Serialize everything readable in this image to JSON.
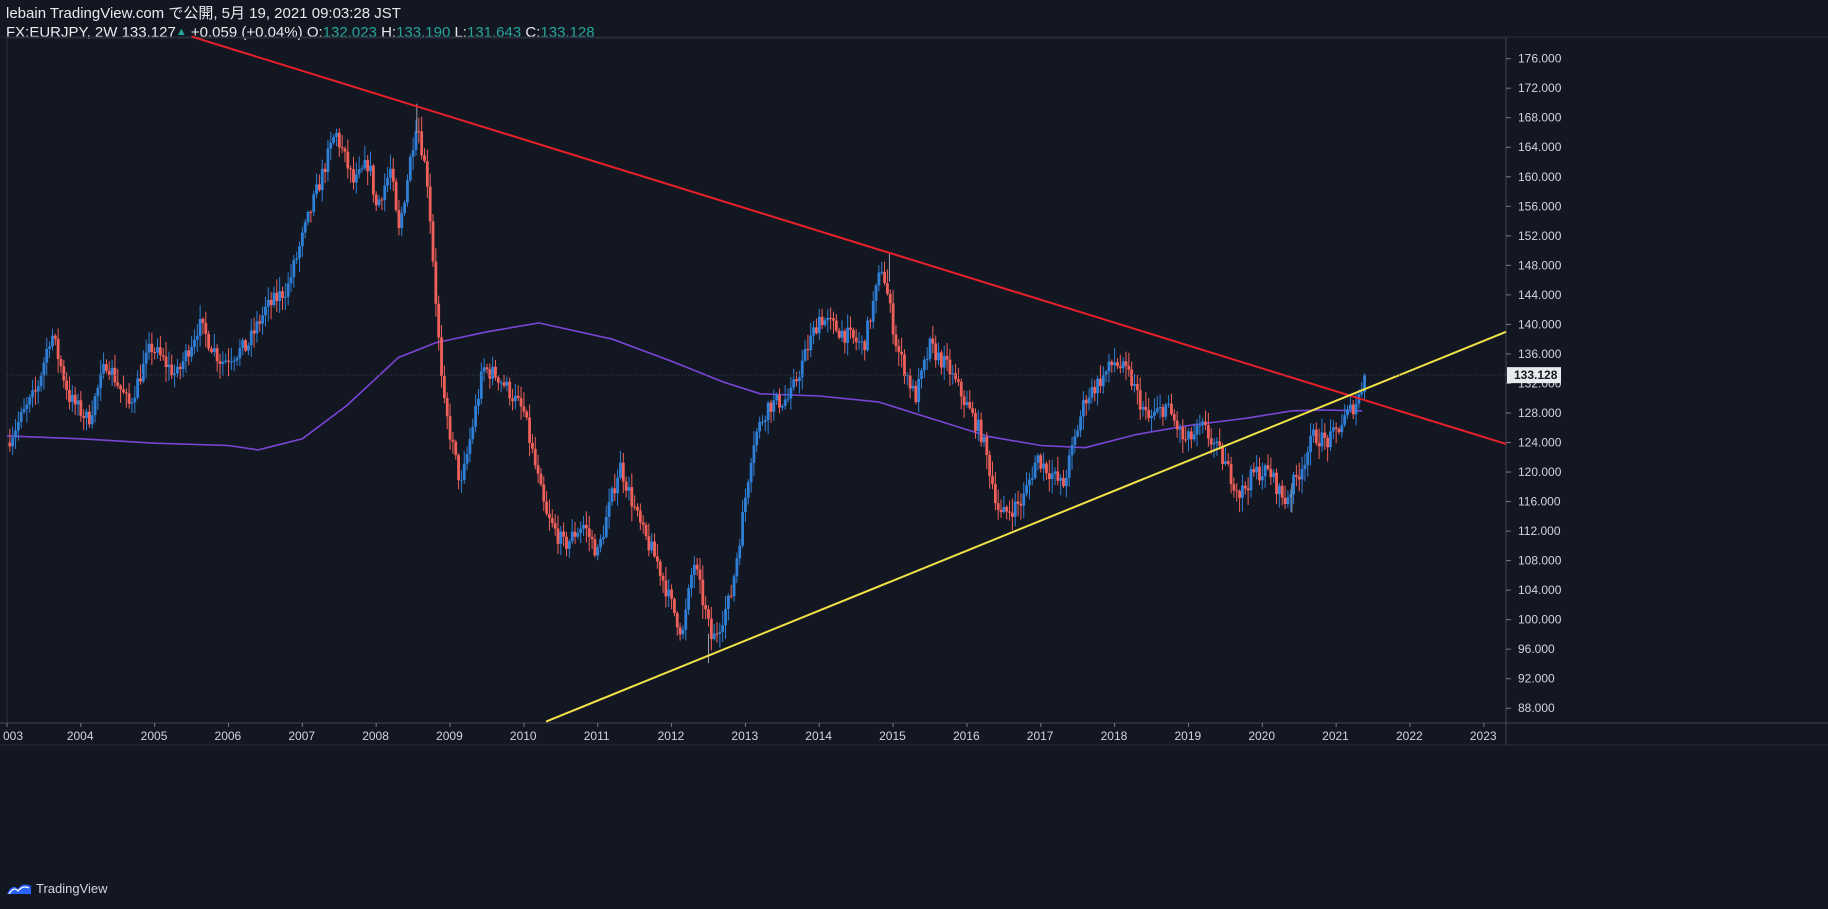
{
  "header": {
    "publish_line": "lebain TradingView.com で公開, 5月 19, 2021 09:03:28 JST",
    "symbol": "FX:EURJPY, 2W",
    "last_price": "133.127",
    "change_arrow": "▲",
    "change": "+0.059 (+0.04%)",
    "open_label": "O:",
    "open": "132.023",
    "high_label": "H:",
    "high": "133.190",
    "low_label": "L:",
    "low": "131.643",
    "close_label": "C:",
    "close": "133.128"
  },
  "footer": {
    "brand": "TradingView"
  },
  "colors": {
    "background": "#131722",
    "up_candle": "#2f7fd6",
    "down_candle": "#f0605a",
    "resistance_line": "#e8202a",
    "support_line": "#f2e24a",
    "moving_average": "#7a45d6",
    "price_label_bg": "#e8eaed"
  },
  "chart_data": {
    "type": "candlestick",
    "symbol": "FX:EURJPY",
    "interval": "2W",
    "xlim": [
      2003.0,
      2023.3
    ],
    "ylim": [
      86.0,
      178.8
    ],
    "x_ticks": [
      "003",
      "2004",
      "2005",
      "2006",
      "2007",
      "2008",
      "2009",
      "2010",
      "2011",
      "2012",
      "2013",
      "2014",
      "2015",
      "2016",
      "2017",
      "2018",
      "2019",
      "2020",
      "2021",
      "2022",
      "2023"
    ],
    "y_ticks": [
      "88.000",
      "92.000",
      "96.000",
      "100.000",
      "104.000",
      "108.000",
      "112.000",
      "116.000",
      "120.000",
      "124.000",
      "128.000",
      "132.000",
      "136.000",
      "140.000",
      "144.000",
      "148.000",
      "152.000",
      "156.000",
      "160.000",
      "164.000",
      "168.000",
      "172.000",
      "176.000"
    ],
    "last_price_label": "133.128",
    "price_path": [
      [
        2003.0,
        124
      ],
      [
        2003.4,
        131
      ],
      [
        2003.6,
        139
      ],
      [
        2003.85,
        130
      ],
      [
        2004.1,
        127
      ],
      [
        2004.35,
        135
      ],
      [
        2004.65,
        129
      ],
      [
        2004.95,
        137
      ],
      [
        2005.3,
        133
      ],
      [
        2005.6,
        140
      ],
      [
        2005.9,
        135
      ],
      [
        2006.25,
        137
      ],
      [
        2006.5,
        142
      ],
      [
        2006.8,
        145
      ],
      [
        2007.1,
        155
      ],
      [
        2007.45,
        166
      ],
      [
        2007.7,
        159
      ],
      [
        2007.9,
        162
      ],
      [
        2008.0,
        156
      ],
      [
        2008.2,
        161
      ],
      [
        2008.3,
        152
      ],
      [
        2008.55,
        168
      ],
      [
        2008.7,
        159
      ],
      [
        2008.9,
        130
      ],
      [
        2009.15,
        118
      ],
      [
        2009.45,
        134
      ],
      [
        2009.65,
        133
      ],
      [
        2009.8,
        131
      ],
      [
        2010.0,
        128
      ],
      [
        2010.3,
        114
      ],
      [
        2010.55,
        110
      ],
      [
        2010.8,
        113
      ],
      [
        2011.0,
        109
      ],
      [
        2011.3,
        121
      ],
      [
        2011.6,
        112
      ],
      [
        2011.8,
        108
      ],
      [
        2012.0,
        102
      ],
      [
        2012.15,
        98
      ],
      [
        2012.3,
        108
      ],
      [
        2012.55,
        97
      ],
      [
        2012.8,
        103
      ],
      [
        2012.95,
        113
      ],
      [
        2013.1,
        124
      ],
      [
        2013.3,
        129
      ],
      [
        2013.6,
        130
      ],
      [
        2013.85,
        137
      ],
      [
        2014.0,
        141
      ],
      [
        2014.3,
        139
      ],
      [
        2014.6,
        137
      ],
      [
        2014.85,
        148
      ],
      [
        2015.05,
        137
      ],
      [
        2015.3,
        130
      ],
      [
        2015.5,
        137
      ],
      [
        2015.75,
        134
      ],
      [
        2016.0,
        129
      ],
      [
        2016.2,
        125
      ],
      [
        2016.45,
        114
      ],
      [
        2016.75,
        116
      ],
      [
        2016.95,
        122
      ],
      [
        2017.3,
        118
      ],
      [
        2017.6,
        130
      ],
      [
        2017.85,
        133
      ],
      [
        2018.0,
        135
      ],
      [
        2018.2,
        133
      ],
      [
        2018.45,
        127
      ],
      [
        2018.7,
        129
      ],
      [
        2018.95,
        124
      ],
      [
        2019.2,
        126
      ],
      [
        2019.45,
        122
      ],
      [
        2019.7,
        117
      ],
      [
        2019.9,
        120
      ],
      [
        2020.1,
        120
      ],
      [
        2020.3,
        116
      ],
      [
        2020.5,
        120
      ],
      [
        2020.7,
        125
      ],
      [
        2020.9,
        124
      ],
      [
        2021.1,
        127
      ],
      [
        2021.3,
        130
      ],
      [
        2021.4,
        133.128
      ]
    ],
    "extremes": [
      [
        2008.55,
        169.9
      ],
      [
        2012.5,
        94.1
      ],
      [
        2014.95,
        149.8
      ],
      [
        2020.4,
        114.5
      ]
    ],
    "moving_average": [
      [
        2003.0,
        124.9
      ],
      [
        2004.0,
        124.5
      ],
      [
        2005.0,
        123.9
      ],
      [
        2006.0,
        123.6
      ],
      [
        2006.4,
        123.0
      ],
      [
        2007.0,
        124.5
      ],
      [
        2007.6,
        129.0
      ],
      [
        2008.3,
        135.5
      ],
      [
        2008.8,
        137.5
      ],
      [
        2009.5,
        139.0
      ],
      [
        2010.2,
        140.2
      ],
      [
        2011.2,
        138.0
      ],
      [
        2012.0,
        135.0
      ],
      [
        2012.7,
        132.2
      ],
      [
        2013.2,
        130.6
      ],
      [
        2014.0,
        130.3
      ],
      [
        2014.8,
        129.5
      ],
      [
        2015.5,
        127.3
      ],
      [
        2016.3,
        124.8
      ],
      [
        2017.0,
        123.6
      ],
      [
        2017.6,
        123.3
      ],
      [
        2018.3,
        125.1
      ],
      [
        2019.0,
        126.3
      ],
      [
        2019.8,
        127.3
      ],
      [
        2020.4,
        128.3
      ],
      [
        2020.8,
        128.4
      ],
      [
        2021.35,
        128.3
      ]
    ],
    "trendlines": [
      {
        "name": "resistance",
        "from": [
          2005.5,
          179.0
        ],
        "to": [
          2023.3,
          123.8
        ]
      },
      {
        "name": "support",
        "from": [
          2010.3,
          86.2
        ],
        "to": [
          2023.3,
          139.0
        ]
      }
    ]
  }
}
